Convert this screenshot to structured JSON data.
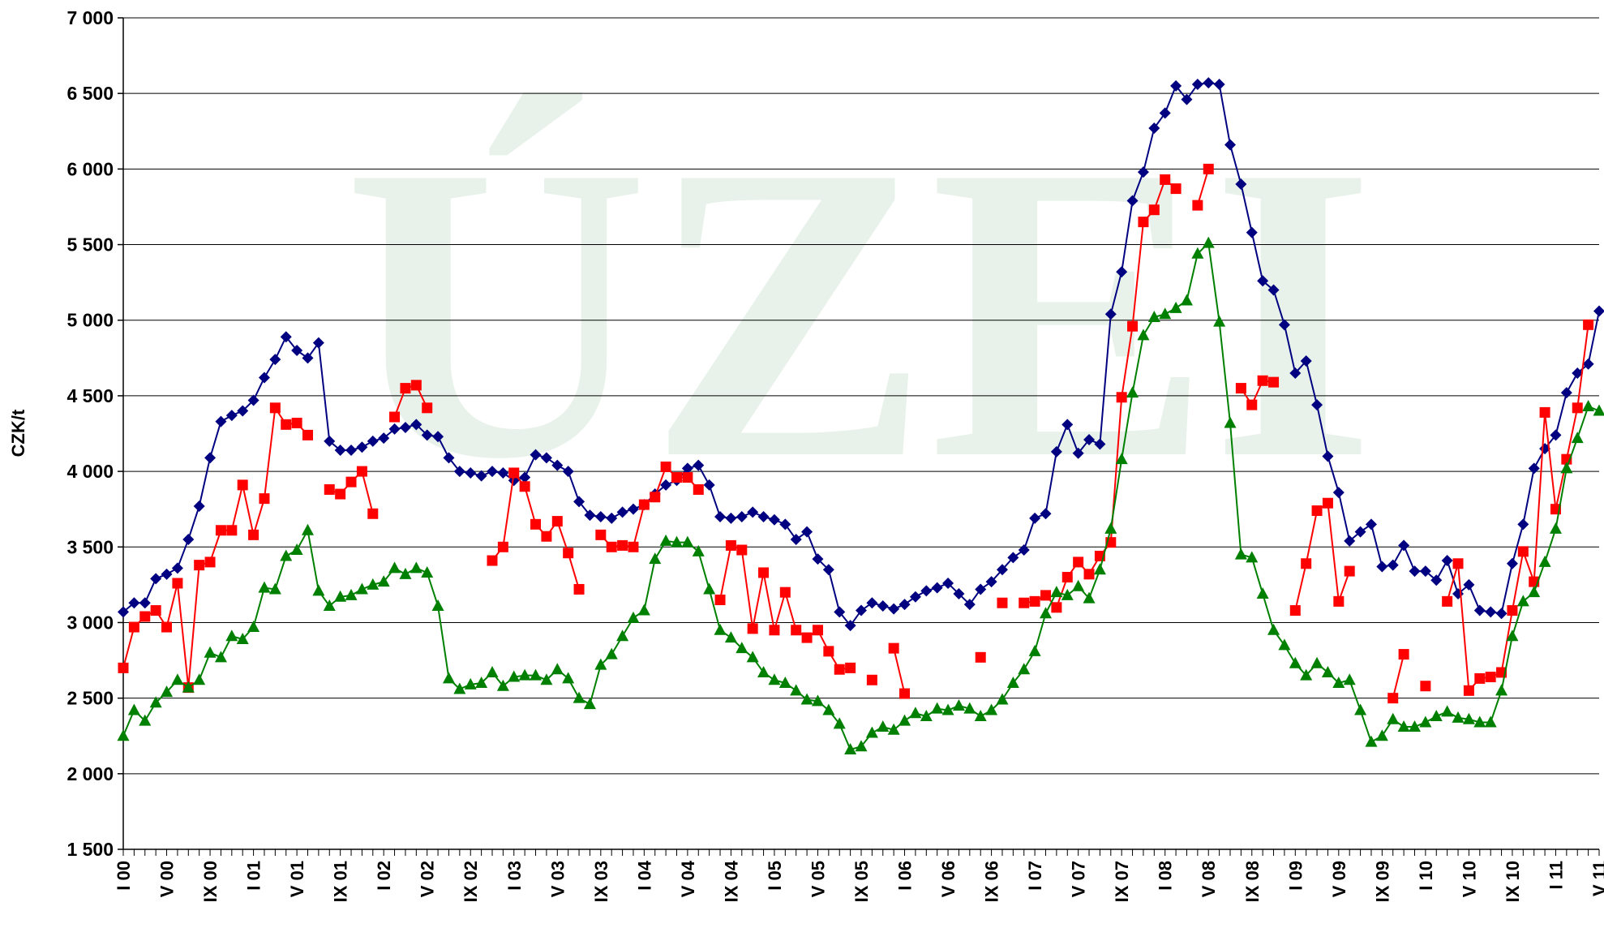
{
  "chart_data": {
    "type": "line",
    "watermark": "ÚZEI",
    "y_label": "CZK/t",
    "ylim": [
      1500,
      7000
    ],
    "yticks": [
      {
        "value": 1500,
        "label": "1 500"
      },
      {
        "value": 2000,
        "label": "2 000"
      },
      {
        "value": 2500,
        "label": "2 500"
      },
      {
        "value": 3000,
        "label": "3 000"
      },
      {
        "value": 3500,
        "label": "3 500"
      },
      {
        "value": 4000,
        "label": "4 000"
      },
      {
        "value": 4500,
        "label": "4 500"
      },
      {
        "value": 5000,
        "label": "5 000"
      },
      {
        "value": 5500,
        "label": "5 500"
      },
      {
        "value": 6000,
        "label": "6 000"
      },
      {
        "value": 6500,
        "label": "6 500"
      },
      {
        "value": 7000,
        "label": "7 000"
      }
    ],
    "grid": true,
    "categories": [
      "I 00",
      null,
      null,
      null,
      "V 00",
      null,
      null,
      null,
      "IX 00",
      null,
      null,
      null,
      "I 01",
      null,
      null,
      null,
      "V 01",
      null,
      null,
      null,
      "IX 01",
      null,
      null,
      null,
      "I 02",
      null,
      null,
      null,
      "V 02",
      null,
      null,
      null,
      "IX 02",
      null,
      null,
      null,
      "I 03",
      null,
      null,
      null,
      "V 03",
      null,
      null,
      null,
      "IX 03",
      null,
      null,
      null,
      "I 04",
      null,
      null,
      null,
      "V 04",
      null,
      null,
      null,
      "IX 04",
      null,
      null,
      null,
      "I 05",
      null,
      null,
      null,
      "V 05",
      null,
      null,
      null,
      "IX 05",
      null,
      null,
      null,
      "I 06",
      null,
      null,
      null,
      "V 06",
      null,
      null,
      null,
      "IX 06",
      null,
      null,
      null,
      "I 07",
      null,
      null,
      null,
      "V 07",
      null,
      null,
      null,
      "IX 07",
      null,
      null,
      null,
      "I 08",
      null,
      null,
      null,
      "V 08",
      null,
      null,
      null,
      "IX 08",
      null,
      null,
      null,
      "I 09",
      null,
      null,
      null,
      "V 09",
      null,
      null,
      null,
      "IX 09",
      null,
      null,
      null,
      "I 10",
      null,
      null,
      null,
      "V 10",
      null,
      null,
      null,
      "IX 10",
      null,
      null,
      null,
      "I 11",
      null,
      null,
      null,
      "V 11"
    ],
    "series": [
      {
        "color": "#000080",
        "marker": "diamond",
        "values": [
          3070,
          3130,
          3130,
          3290,
          3320,
          3360,
          3550,
          3770,
          4090,
          4330,
          4370,
          4400,
          4470,
          4620,
          4740,
          4890,
          4800,
          4750,
          4850,
          4200,
          4140,
          4140,
          4160,
          4200,
          4220,
          4280,
          4290,
          4310,
          4240,
          4230,
          4090,
          4000,
          3990,
          3970,
          4000,
          3990,
          3940,
          3960,
          4110,
          4090,
          4040,
          4000,
          3800,
          3710,
          3700,
          3690,
          3730,
          3750,
          3780,
          3850,
          3910,
          3940,
          4020,
          4040,
          3910,
          3700,
          3690,
          3700,
          3730,
          3700,
          3680,
          3650,
          3550,
          3600,
          3420,
          3350,
          3070,
          2980,
          3080,
          3130,
          3110,
          3090,
          3120,
          3170,
          3210,
          3230,
          3260,
          3190,
          3120,
          3220,
          3270,
          3350,
          3430,
          3480,
          3690,
          3720,
          4130,
          4310,
          4120,
          4210,
          4180,
          5040,
          5320,
          5790,
          5980,
          6270,
          6370,
          6550,
          6460,
          6560,
          6570,
          6560,
          6160,
          5900,
          5580,
          5260,
          5200,
          4970,
          4650,
          4730,
          4440,
          4100,
          3860,
          3540,
          3600,
          3650,
          3370,
          3380,
          3510,
          3340,
          3340,
          3280,
          3410,
          3190,
          3250,
          3080,
          3070,
          3060,
          3390,
          3650,
          4020,
          4150,
          4240,
          4520,
          4650,
          4710,
          5060
        ]
      },
      {
        "color": "#ff0000",
        "marker": "square",
        "values": [
          2700,
          2970,
          3040,
          3080,
          2970,
          3260,
          2570,
          3380,
          3400,
          3610,
          3610,
          3910,
          3580,
          3820,
          4420,
          4310,
          4320,
          4240,
          null,
          3880,
          3850,
          3930,
          4000,
          3720,
          null,
          4360,
          4550,
          4570,
          4420,
          null,
          null,
          null,
          null,
          null,
          3410,
          3500,
          3990,
          3900,
          3650,
          3570,
          3670,
          3460,
          3220,
          null,
          3580,
          3500,
          3510,
          3500,
          3780,
          3830,
          4030,
          3960,
          3960,
          3880,
          null,
          3150,
          3510,
          3480,
          2960,
          3330,
          2950,
          3200,
          2950,
          2900,
          2950,
          2810,
          2690,
          2700,
          null,
          2620,
          null,
          2830,
          2530,
          null,
          null,
          null,
          null,
          null,
          null,
          2770,
          null,
          3130,
          null,
          3130,
          3140,
          3180,
          3100,
          3300,
          3400,
          3320,
          3440,
          3530,
          4490,
          4960,
          5650,
          5730,
          5930,
          5870,
          null,
          5760,
          6000,
          null,
          null,
          4550,
          4440,
          4600,
          4590,
          null,
          3080,
          3390,
          3740,
          3790,
          3140,
          3340,
          null,
          null,
          null,
          2500,
          2790,
          null,
          2580,
          null,
          3140,
          3390,
          2550,
          2630,
          2640,
          2670,
          3080,
          3470,
          3270,
          4390,
          3750,
          4080,
          4420,
          4970,
          null
        ]
      },
      {
        "color": "#008000",
        "marker": "triangle",
        "values": [
          2250,
          2420,
          2350,
          2470,
          2540,
          2620,
          2570,
          2620,
          2800,
          2770,
          2910,
          2890,
          2970,
          3230,
          3220,
          3440,
          3480,
          3610,
          3210,
          3110,
          3170,
          3180,
          3220,
          3250,
          3270,
          3360,
          3320,
          3360,
          3330,
          3110,
          2630,
          2560,
          2590,
          2600,
          2670,
          2580,
          2640,
          2650,
          2650,
          2620,
          2690,
          2630,
          2500,
          2460,
          2720,
          2790,
          2910,
          3030,
          3080,
          3420,
          3540,
          3530,
          3530,
          3470,
          3220,
          2950,
          2900,
          2830,
          2770,
          2670,
          2620,
          2600,
          2550,
          2490,
          2480,
          2420,
          2330,
          2160,
          2180,
          2270,
          2310,
          2290,
          2350,
          2400,
          2380,
          2430,
          2420,
          2450,
          2430,
          2380,
          2420,
          2490,
          2600,
          2690,
          2810,
          3060,
          3200,
          3180,
          3240,
          3160,
          3350,
          3620,
          4080,
          4520,
          4900,
          5020,
          5040,
          5080,
          5130,
          5440,
          5510,
          4990,
          4320,
          3450,
          3430,
          3190,
          2950,
          2850,
          2730,
          2650,
          2730,
          2670,
          2600,
          2620,
          2420,
          2210,
          2250,
          2360,
          2310,
          2310,
          2340,
          2380,
          2410,
          2370,
          2360,
          2340,
          2340,
          2550,
          2910,
          3140,
          3200,
          3400,
          3620,
          4020,
          4220,
          4430,
          4400
        ]
      }
    ]
  }
}
